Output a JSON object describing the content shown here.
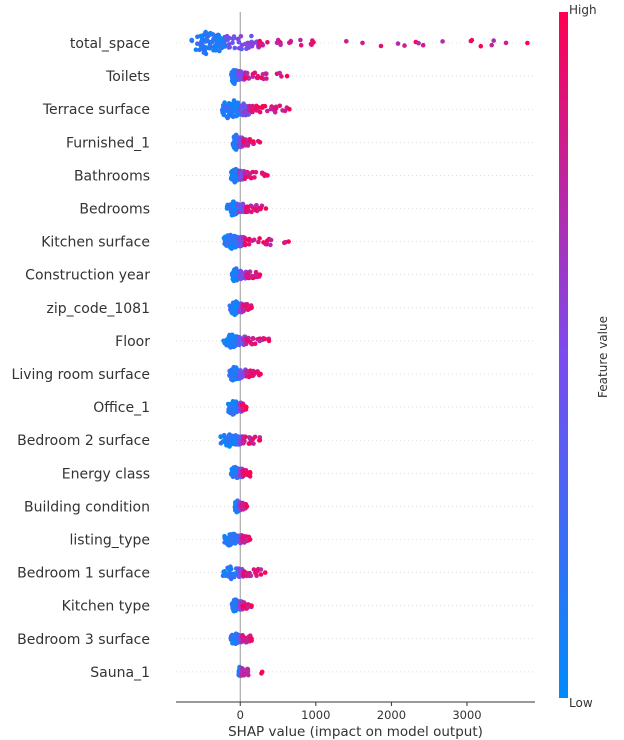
{
  "chart_data": {
    "type": "scatter",
    "subtype": "shap-beeswarm",
    "xlabel": "SHAP value (impact on model output)",
    "xlim": [
      -850,
      3900
    ],
    "xticks": [
      0,
      1000,
      2000,
      3000
    ],
    "xtick_labels": [
      "0",
      "1000",
      "2000",
      "3000"
    ],
    "zero_line": 0,
    "colorbar": {
      "title": "Feature value",
      "high_label": "High",
      "low_label": "Low",
      "low_color": "#008bfb",
      "high_color": "#ff0052"
    },
    "features": [
      {
        "name": "total_space",
        "low_min": -650,
        "low_max": -200,
        "mid_max": 250,
        "high_max": 3800,
        "spread": 1.0
      },
      {
        "name": "Toilets",
        "low_min": -120,
        "low_max": -40,
        "mid_max": 60,
        "high_max": 620,
        "spread": 0.6
      },
      {
        "name": "Terrace surface",
        "low_min": -250,
        "low_max": 0,
        "mid_max": 120,
        "high_max": 650,
        "spread": 0.85
      },
      {
        "name": "Furnished_1",
        "low_min": -100,
        "low_max": -20,
        "mid_max": 40,
        "high_max": 260,
        "spread": 0.55
      },
      {
        "name": "Bathrooms",
        "low_min": -130,
        "low_max": -20,
        "mid_max": 60,
        "high_max": 360,
        "spread": 0.5
      },
      {
        "name": "Bedrooms",
        "low_min": -180,
        "low_max": -30,
        "mid_max": 80,
        "high_max": 340,
        "spread": 0.55
      },
      {
        "name": "Kitchen surface",
        "low_min": -220,
        "low_max": -20,
        "mid_max": 60,
        "high_max": 640,
        "spread": 0.55
      },
      {
        "name": "Construction year",
        "low_min": -120,
        "low_max": -20,
        "mid_max": 80,
        "high_max": 260,
        "spread": 0.5
      },
      {
        "name": "zip_code_1081",
        "low_min": -140,
        "low_max": -10,
        "mid_max": 30,
        "high_max": 150,
        "spread": 0.5
      },
      {
        "name": "Floor",
        "low_min": -230,
        "low_max": -20,
        "mid_max": 80,
        "high_max": 380,
        "spread": 0.5
      },
      {
        "name": "Living room surface",
        "low_min": -150,
        "low_max": -10,
        "mid_max": 80,
        "high_max": 270,
        "spread": 0.55
      },
      {
        "name": "Office_1",
        "low_min": -180,
        "low_max": -20,
        "mid_max": 20,
        "high_max": 80,
        "spread": 0.5
      },
      {
        "name": "Bedroom 2 surface",
        "low_min": -280,
        "low_max": -20,
        "mid_max": 40,
        "high_max": 260,
        "spread": 0.5
      },
      {
        "name": "Energy class",
        "low_min": -120,
        "low_max": -20,
        "mid_max": 30,
        "high_max": 130,
        "spread": 0.5
      },
      {
        "name": "Building condition",
        "low_min": -70,
        "low_max": -15,
        "mid_max": 20,
        "high_max": 90,
        "spread": 0.45
      },
      {
        "name": "listing_type",
        "low_min": -220,
        "low_max": -20,
        "mid_max": 20,
        "high_max": 130,
        "spread": 0.45
      },
      {
        "name": "Bedroom 1 surface",
        "low_min": -230,
        "low_max": -20,
        "mid_max": 40,
        "high_max": 330,
        "spread": 0.45
      },
      {
        "name": "Kitchen type",
        "low_min": -110,
        "low_max": -20,
        "mid_max": 30,
        "high_max": 150,
        "spread": 0.5
      },
      {
        "name": "Bedroom 3 surface",
        "low_min": -130,
        "low_max": -20,
        "mid_max": 30,
        "high_max": 150,
        "spread": 0.45
      },
      {
        "name": "Sauna_1",
        "low_min": -20,
        "low_max": 10,
        "mid_max": 30,
        "high_max": 290,
        "spread": 0.35
      }
    ]
  }
}
